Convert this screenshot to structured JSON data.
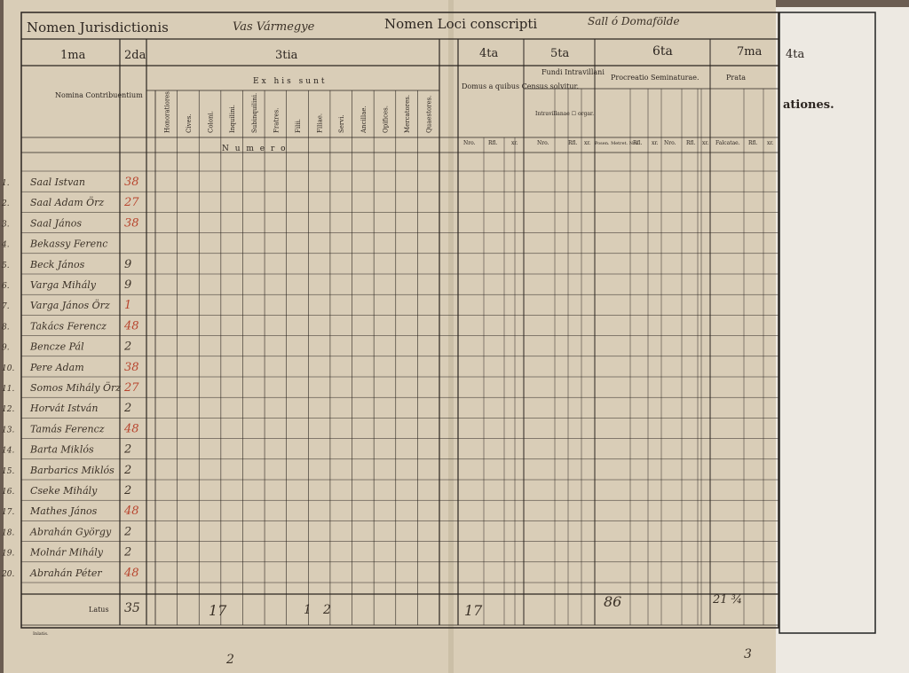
{
  "header": {
    "jurisdiction_label": "Nomen Jurisdictionis",
    "jurisdiction_value": "Vas Vármegye",
    "locus_label": "Nomen Loci conscripti",
    "locus_value": "Sall ó Domafölde"
  },
  "columns": {
    "col1": "1ma",
    "col2": "2da",
    "col3": "3tia",
    "col4": "4ta",
    "col5": "5ta",
    "col6": "6ta",
    "col7": "7ma",
    "col4_right": "4ta",
    "nomina": "Nomina Contribuentium",
    "ex_his_sunt": "Ex his sunt",
    "numero": "N u m e r o",
    "domus": "Domus a quibus Census solvitur.",
    "fundi": "Fundi Intravillani",
    "procreatio": "Procreatio Seminaturae.",
    "prata": "Prata",
    "intravillanae": "Intravillanae ☐ orgar.",
    "nro": "Nro.",
    "rfl": "Rfl.",
    "xr": "xr.",
    "falcatae": "Falcatae.",
    "pos_metret": "Posen. Metret. Nro.",
    "right_page_text": "ationes.",
    "latus": "Latus",
    "footer_small": "Inlatis."
  },
  "class_headers": [
    "Honoratiores.",
    "Cives.",
    "Coloni.",
    "Inquilini.",
    "Subinquilini.",
    "Fratres.",
    "Filii.",
    "Filiae.",
    "Servi.",
    "Ancillae.",
    "Opifices.",
    "Mercatores.",
    "Quaestores."
  ],
  "rows": [
    {
      "num": "1.",
      "name": "Saal Istvan",
      "c2": "38"
    },
    {
      "num": "2.",
      "name": "Saal Adam Örz",
      "c2": "27"
    },
    {
      "num": "3.",
      "name": "Saal János",
      "c2": "38"
    },
    {
      "num": "4.",
      "name": "Bekassy Ferenc",
      "c2": ""
    },
    {
      "num": "5.",
      "name": "Beck János",
      "c2": "9"
    },
    {
      "num": "6.",
      "name": "Varga Mihály",
      "c2": "9"
    },
    {
      "num": "7.",
      "name": "Varga János Örz",
      "c2": "1"
    },
    {
      "num": "8.",
      "name": "Takács Ferencz",
      "c2": "48"
    },
    {
      "num": "9.",
      "name": "Bencze Pál",
      "c2": "2"
    },
    {
      "num": "10.",
      "name": "Pere Adam",
      "c2": "38"
    },
    {
      "num": "11.",
      "name": "Somos Mihály Örz",
      "c2": "27"
    },
    {
      "num": "12.",
      "name": "Horvát István",
      "c2": "2"
    },
    {
      "num": "13.",
      "name": "Tamás Ferencz",
      "c2": "48"
    },
    {
      "num": "14.",
      "name": "Barta Miklós",
      "c2": "2"
    },
    {
      "num": "15.",
      "name": "Barbarics Miklós",
      "c2": "2"
    },
    {
      "num": "16.",
      "name": "Cseke Mihály",
      "c2": "2"
    },
    {
      "num": "17.",
      "name": "Mathes János",
      "c2": "48"
    },
    {
      "num": "18.",
      "name": "Abrahán György",
      "c2": "2"
    },
    {
      "num": "19.",
      "name": "Molnár Mihály",
      "c2": "2"
    },
    {
      "num": "20.",
      "name": "Abrahán Péter",
      "c2": "48"
    }
  ],
  "totals": {
    "c2": "35",
    "coloni": "17",
    "filii": "1",
    "filiae": "2",
    "domus": "17",
    "procreatio": "86",
    "prata": "21 ¾"
  },
  "folio_left": "2",
  "folio_right": "3"
}
